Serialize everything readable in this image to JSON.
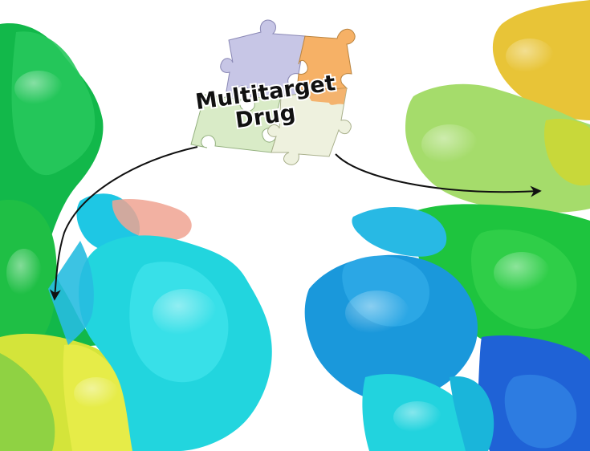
{
  "label": {
    "line1": "Multitarget",
    "line2": "Drug"
  },
  "colors": {
    "background": "#ffffff",
    "protein_green": "#1dbf3a",
    "protein_light_green": "#8fdc64",
    "protein_yellow": "#e3e63a",
    "protein_gold": "#e9c53a",
    "protein_cyan": "#1cd6dc",
    "protein_blue": "#1e9fdc",
    "protein_dark_blue": "#1f5fd8",
    "protein_salmon": "#f29a88",
    "puzzle_lavender": "#c7c6e6",
    "puzzle_orange": "#f6b166",
    "puzzle_pale_green": "#d9ebc7",
    "puzzle_cream": "#eef1de",
    "arrow": "#111111"
  },
  "icons": [
    "puzzle-icon",
    "protein-surface-left",
    "protein-surface-right",
    "curved-arrow-left",
    "curved-arrow-right"
  ]
}
